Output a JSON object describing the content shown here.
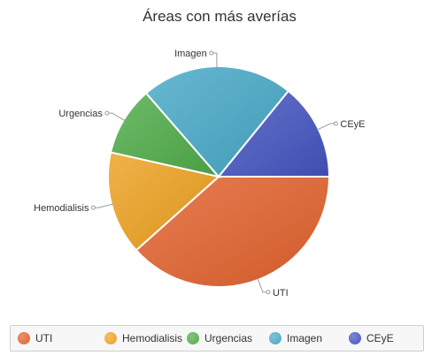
{
  "chart_data": {
    "type": "pie",
    "title": "Áreas con más averías",
    "categories": [
      "UTI",
      "Hemodialisis",
      "Urgencias",
      "Imagen",
      "CEyE"
    ],
    "values": [
      38,
      15,
      10,
      22,
      14
    ],
    "colors": [
      "#e2622d",
      "#eda120",
      "#4fac49",
      "#47a8c7",
      "#4454c0"
    ],
    "legend_position": "bottom"
  }
}
